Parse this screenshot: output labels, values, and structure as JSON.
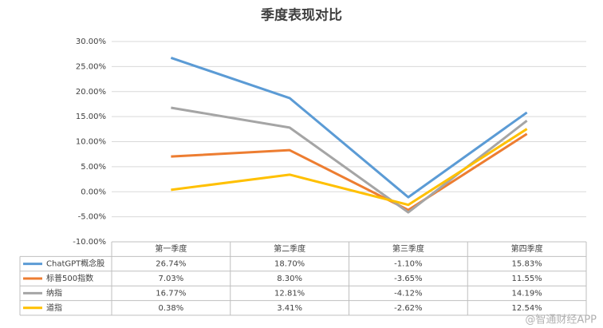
{
  "chart_data": {
    "type": "line",
    "title": "季度表现对比",
    "categories": [
      "第一季度",
      "第二季度",
      "第三季度",
      "第四季度"
    ],
    "series": [
      {
        "name": "ChatGPT概念股",
        "color": "#5b9bd5",
        "values": [
          26.74,
          18.7,
          -1.1,
          15.83
        ],
        "value_labels": [
          "26.74%",
          "18.70%",
          "-1.10%",
          "15.83%"
        ]
      },
      {
        "name": "标普500指数",
        "color": "#ed7d31",
        "values": [
          7.03,
          8.3,
          -3.65,
          11.55
        ],
        "value_labels": [
          "7.03%",
          "8.30%",
          "-3.65%",
          "11.55%"
        ]
      },
      {
        "name": "纳指",
        "color": "#a5a5a5",
        "values": [
          16.77,
          12.81,
          -4.12,
          14.19
        ],
        "value_labels": [
          "16.77%",
          "12.81%",
          "-4.12%",
          "14.19%"
        ]
      },
      {
        "name": "道指",
        "color": "#ffc000",
        "values": [
          0.38,
          3.41,
          -2.62,
          12.54
        ],
        "value_labels": [
          "0.38%",
          "3.41%",
          "-2.62%",
          "12.54%"
        ]
      }
    ],
    "ylim": [
      -10,
      30
    ],
    "yticks": [
      {
        "value": -10,
        "label": "-10.00%"
      },
      {
        "value": -5,
        "label": "-5.00%"
      },
      {
        "value": 0,
        "label": "0.00%"
      },
      {
        "value": 5,
        "label": "5.00%"
      },
      {
        "value": 10,
        "label": "10.00%"
      },
      {
        "value": 15,
        "label": "15.00%"
      },
      {
        "value": 20,
        "label": "20.00%"
      },
      {
        "value": 25,
        "label": "25.00%"
      },
      {
        "value": 30,
        "label": "30.00%"
      }
    ],
    "grid": true,
    "watermark": "@智通财经APP"
  }
}
